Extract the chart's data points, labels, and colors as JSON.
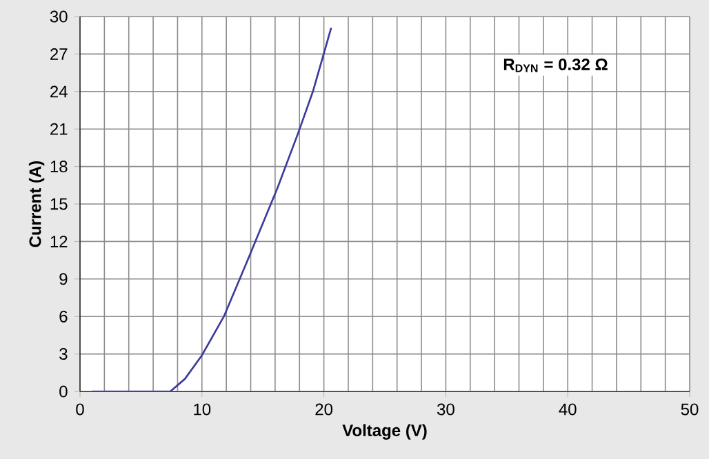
{
  "chart_data": {
    "type": "line",
    "xlabel": "Voltage (V)",
    "ylabel": "Current (A)",
    "annotations": [
      "**R$_{DYN}$ = 0.32 Ω**"
    ],
    "x": [
      1,
      7.4,
      8.6,
      10,
      11.8,
      13.7,
      16.2,
      17.9,
      19.1,
      20.6
    ],
    "series": [
      {
        "color": "#3c3c9c",
        "values": [
          0,
          0,
          1.0,
          2.9,
          6.0,
          10.4,
          16.3,
          20.7,
          24.0,
          29.1
        ]
      }
    ],
    "xlim": [
      0,
      50
    ],
    "ylim": [
      0,
      30
    ],
    "xticks": [
      0,
      10,
      20,
      30,
      40,
      50
    ],
    "yticks": [
      0,
      3,
      6,
      9,
      12,
      15,
      18,
      21,
      24,
      27,
      30
    ],
    "grid": true,
    "marker": "none",
    "line_style": "solid"
  }
}
